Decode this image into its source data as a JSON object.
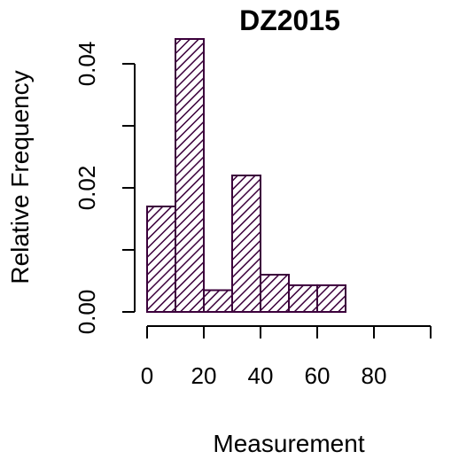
{
  "chart_data": {
    "type": "bar",
    "title": "DZ2015",
    "xlabel": "Measurement",
    "ylabel": "Relative Frequency",
    "xlim": [
      0,
      100
    ],
    "ylim": [
      0,
      0.04
    ],
    "bin_width": 10,
    "bins": [
      {
        "start": 0,
        "end": 10,
        "value": 0.017
      },
      {
        "start": 10,
        "end": 20,
        "value": 0.044
      },
      {
        "start": 20,
        "end": 30,
        "value": 0.0035
      },
      {
        "start": 30,
        "end": 40,
        "value": 0.022
      },
      {
        "start": 40,
        "end": 50,
        "value": 0.006
      },
      {
        "start": 50,
        "end": 60,
        "value": 0.0043
      },
      {
        "start": 60,
        "end": 70,
        "value": 0.0043
      },
      {
        "start": 70,
        "end": 80,
        "value": 0
      },
      {
        "start": 80,
        "end": 90,
        "value": 0
      },
      {
        "start": 90,
        "end": 100,
        "value": 0
      }
    ],
    "x_ticks": [
      0,
      20,
      40,
      60,
      80,
      100
    ],
    "x_tick_labels": [
      "0",
      "20",
      "40",
      "60",
      "80"
    ],
    "y_ticks": [
      0,
      0.01,
      0.02,
      0.03,
      0.04
    ],
    "y_tick_labels": [
      "0.00",
      "0.02",
      "0.04"
    ],
    "y_tick_label_values": [
      0,
      0.02,
      0.04
    ],
    "fill_pattern": "diagonal-hatch",
    "bar_color": "#3b003b",
    "grid": false,
    "legend": "none"
  }
}
